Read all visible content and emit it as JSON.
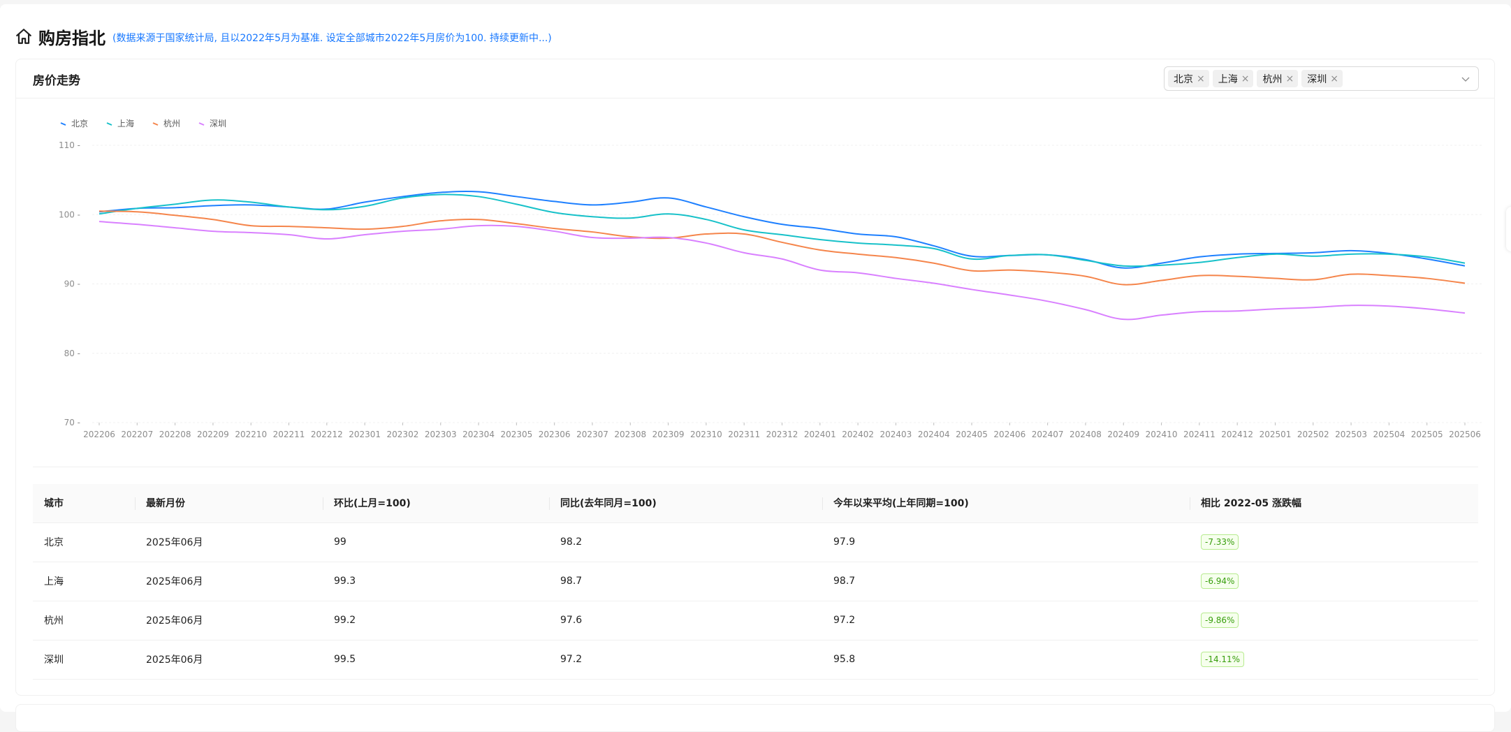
{
  "header": {
    "title": "购房指北",
    "subtitle": "(数据来源于国家统计局, 且以2022年5月为基准. 设定全部城市2022年5月房价为100. 持续更新中...)"
  },
  "card": {
    "title": "房价走势",
    "selected_cities": [
      "北京",
      "上海",
      "杭州",
      "深圳"
    ],
    "tag_close_glyph": "×"
  },
  "colors": {
    "北京": "#1e80ff",
    "上海": "#17c1c9",
    "杭州": "#f5854b",
    "深圳": "#d980ff",
    "grid": "#f0f0f0",
    "badge_green": "#389e0d"
  },
  "chart_data": {
    "type": "line",
    "ylim": [
      70,
      110
    ],
    "yticks": [
      70,
      80,
      90,
      100,
      110
    ],
    "grid": true,
    "legend": "top-left",
    "x": [
      "202206",
      "202207",
      "202208",
      "202209",
      "202210",
      "202211",
      "202212",
      "202301",
      "202302",
      "202303",
      "202304",
      "202305",
      "202306",
      "202307",
      "202308",
      "202309",
      "202310",
      "202311",
      "202312",
      "202401",
      "202402",
      "202403",
      "202404",
      "202405",
      "202406",
      "202407",
      "202408",
      "202409",
      "202410",
      "202411",
      "202412",
      "202501",
      "202502",
      "202503",
      "202504",
      "202505",
      "202506"
    ],
    "series": [
      {
        "name": "北京",
        "values": [
          100.4,
          100.9,
          101.0,
          101.3,
          101.4,
          101.1,
          100.8,
          101.8,
          102.6,
          103.2,
          103.3,
          102.6,
          101.9,
          101.4,
          101.8,
          102.4,
          101.1,
          99.7,
          98.6,
          98.0,
          97.2,
          96.8,
          95.5,
          94.0,
          94.1,
          94.2,
          93.5,
          92.3,
          93.0,
          93.9,
          94.3,
          94.4,
          94.5,
          94.8,
          94.4,
          93.6,
          92.6
        ]
      },
      {
        "name": "上海",
        "values": [
          100.1,
          100.9,
          101.5,
          102.1,
          101.8,
          101.1,
          100.7,
          101.2,
          102.4,
          102.9,
          102.6,
          101.5,
          100.3,
          99.7,
          99.5,
          100.1,
          99.3,
          97.8,
          97.1,
          96.4,
          95.9,
          95.6,
          95.1,
          93.6,
          94.1,
          94.2,
          93.4,
          92.6,
          92.7,
          93.1,
          93.8,
          94.3,
          94.0,
          94.3,
          94.3,
          93.9,
          93.0
        ]
      },
      {
        "name": "杭州",
        "values": [
          100.5,
          100.4,
          99.9,
          99.3,
          98.4,
          98.3,
          98.1,
          97.9,
          98.3,
          99.1,
          99.3,
          98.7,
          98.0,
          97.5,
          96.8,
          96.6,
          97.2,
          97.2,
          96.0,
          94.9,
          94.3,
          93.8,
          93.0,
          91.9,
          92.0,
          91.7,
          91.1,
          89.9,
          90.5,
          91.2,
          91.1,
          90.8,
          90.6,
          91.4,
          91.2,
          90.8,
          90.1
        ]
      },
      {
        "name": "深圳",
        "values": [
          99.0,
          98.6,
          98.1,
          97.6,
          97.4,
          97.1,
          96.5,
          97.1,
          97.6,
          97.9,
          98.4,
          98.3,
          97.6,
          96.7,
          96.6,
          96.7,
          95.9,
          94.5,
          93.6,
          92.0,
          91.6,
          90.8,
          90.1,
          89.2,
          88.4,
          87.5,
          86.3,
          84.9,
          85.5,
          86.0,
          86.1,
          86.4,
          86.6,
          86.9,
          86.8,
          86.4,
          85.8
        ]
      }
    ]
  },
  "table": {
    "columns": [
      "城市",
      "最新月份",
      "环比(上月=100)",
      "同比(去年同月=100)",
      "今年以来平均(上年同期=100)",
      "相比 2022-05 涨跌幅"
    ],
    "rows": [
      [
        "北京",
        "2025年06月",
        "99",
        "98.2",
        "97.9",
        "-7.33%"
      ],
      [
        "上海",
        "2025年06月",
        "99.3",
        "98.7",
        "98.7",
        "-6.94%"
      ],
      [
        "杭州",
        "2025年06月",
        "99.2",
        "97.6",
        "97.2",
        "-9.86%"
      ],
      [
        "深圳",
        "2025年06月",
        "99.5",
        "97.2",
        "95.8",
        "-14.11%"
      ]
    ]
  }
}
